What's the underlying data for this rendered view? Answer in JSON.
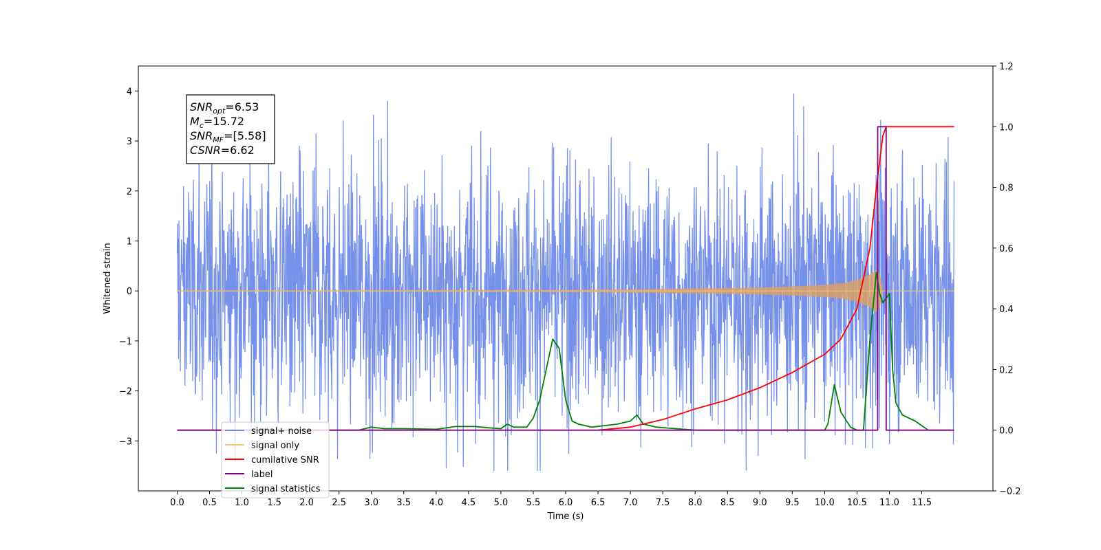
{
  "chart_data": {
    "type": "line",
    "xlabel": "Time (s)",
    "ylabel_left": "Whitened strain",
    "ylabel_right": "",
    "xlim": [
      -0.6,
      12.6
    ],
    "ylim_left": [
      -4.0,
      4.5
    ],
    "ylim_right": [
      -0.2,
      1.2
    ],
    "grid": false,
    "x_ticks": [
      "0.0",
      "0.5",
      "1.0",
      "1.5",
      "2.0",
      "2.5",
      "3.0",
      "3.5",
      "4.0",
      "4.5",
      "5.0",
      "5.5",
      "6.0",
      "6.5",
      "7.0",
      "7.5",
      "8.0",
      "8.5",
      "9.0",
      "9.5",
      "10.0",
      "10.5",
      "11.0",
      "11.5"
    ],
    "y_ticks_left": [
      "−3",
      "−2",
      "−1",
      "0",
      "1",
      "2",
      "3",
      "4"
    ],
    "y_ticks_right": [
      "−0.2",
      "0.0",
      "0.2",
      "0.4",
      "0.6",
      "0.8",
      "1.0",
      "1.2"
    ],
    "stats_box": {
      "lines": [
        {
          "sym": "SNR",
          "sub": "opt",
          "value": "=6.53"
        },
        {
          "sym": "M",
          "sub": "c",
          "value": "=15.72"
        },
        {
          "sym": "SNR",
          "sub": "MF",
          "value": "=[5.58]"
        },
        {
          "sym": "CSNR",
          "sub": "",
          "value": "=6.62"
        }
      ]
    },
    "legend": {
      "placement": "lower-left",
      "entries": [
        {
          "label": "signal+ noise",
          "color": "#6f8be8"
        },
        {
          "label": "signal only",
          "color": "#f5c46a"
        },
        {
          "label": "cumilative SNR",
          "color": "#ff0000"
        },
        {
          "label": "label",
          "color": "#800080"
        },
        {
          "label": "signal statistics",
          "color": "#008000"
        }
      ]
    },
    "series": [
      {
        "name": "signal+ noise",
        "axis": "left",
        "color": "#6f8be8",
        "description_values": {
          "x_range": [
            0.0,
            12.0
          ],
          "typical_amplitude": 2.5,
          "max": 4.1,
          "min": -3.6
        }
      },
      {
        "name": "signal only",
        "axis": "left",
        "color": "#e0a060",
        "x": [
          0.0,
          6.0,
          7.0,
          8.0,
          9.0,
          9.5,
          10.0,
          10.3,
          10.5,
          10.6,
          10.7,
          10.8,
          10.85,
          10.9,
          12.0
        ],
        "envelope": [
          0.01,
          0.02,
          0.03,
          0.05,
          0.07,
          0.09,
          0.12,
          0.16,
          0.22,
          0.27,
          0.33,
          0.42,
          0.35,
          0.0,
          0.0
        ]
      },
      {
        "name": "cumilative SNR",
        "axis": "right",
        "color": "#ff0000",
        "x": [
          6.5,
          7.0,
          7.5,
          8.0,
          8.5,
          9.0,
          9.5,
          10.0,
          10.25,
          10.5,
          10.7,
          10.8,
          10.9,
          10.95,
          12.0
        ],
        "y": [
          0.0,
          0.01,
          0.035,
          0.07,
          0.1,
          0.14,
          0.19,
          0.25,
          0.3,
          0.4,
          0.6,
          0.8,
          0.97,
          1.0,
          1.0
        ]
      },
      {
        "name": "label",
        "axis": "right",
        "color": "#800080",
        "x": [
          0.0,
          10.82,
          10.82,
          10.95,
          10.95,
          12.0
        ],
        "y": [
          0.0,
          0.0,
          1.0,
          1.0,
          0.0,
          0.0
        ]
      },
      {
        "name": "signal statistics",
        "axis": "right",
        "color": "#008000",
        "x": [
          0.0,
          2.8,
          3.0,
          3.2,
          3.5,
          4.0,
          4.3,
          4.6,
          4.8,
          5.0,
          5.1,
          5.2,
          5.4,
          5.5,
          5.6,
          5.7,
          5.8,
          5.9,
          6.0,
          6.1,
          6.2,
          6.4,
          6.6,
          6.8,
          7.0,
          7.1,
          7.2,
          7.4,
          7.7,
          8.0,
          9.0,
          10.0,
          10.05,
          10.15,
          10.25,
          10.4,
          10.5,
          10.6,
          10.7,
          10.8,
          10.85,
          10.9,
          11.0,
          11.05,
          11.1,
          11.2,
          11.4,
          11.6,
          11.95
        ],
        "y": [
          0.0,
          0.0,
          0.01,
          0.005,
          0.005,
          0.003,
          0.012,
          0.012,
          0.008,
          0.005,
          0.02,
          0.01,
          0.01,
          0.04,
          0.1,
          0.2,
          0.3,
          0.27,
          0.1,
          0.03,
          0.02,
          0.01,
          0.015,
          0.02,
          0.03,
          0.05,
          0.02,
          0.01,
          0.005,
          0.0,
          0.0,
          0.0,
          0.02,
          0.15,
          0.06,
          0.01,
          0.0,
          0.0,
          0.3,
          0.52,
          0.45,
          0.42,
          0.45,
          0.2,
          0.09,
          0.05,
          0.03,
          0.0,
          0.0
        ]
      }
    ]
  }
}
